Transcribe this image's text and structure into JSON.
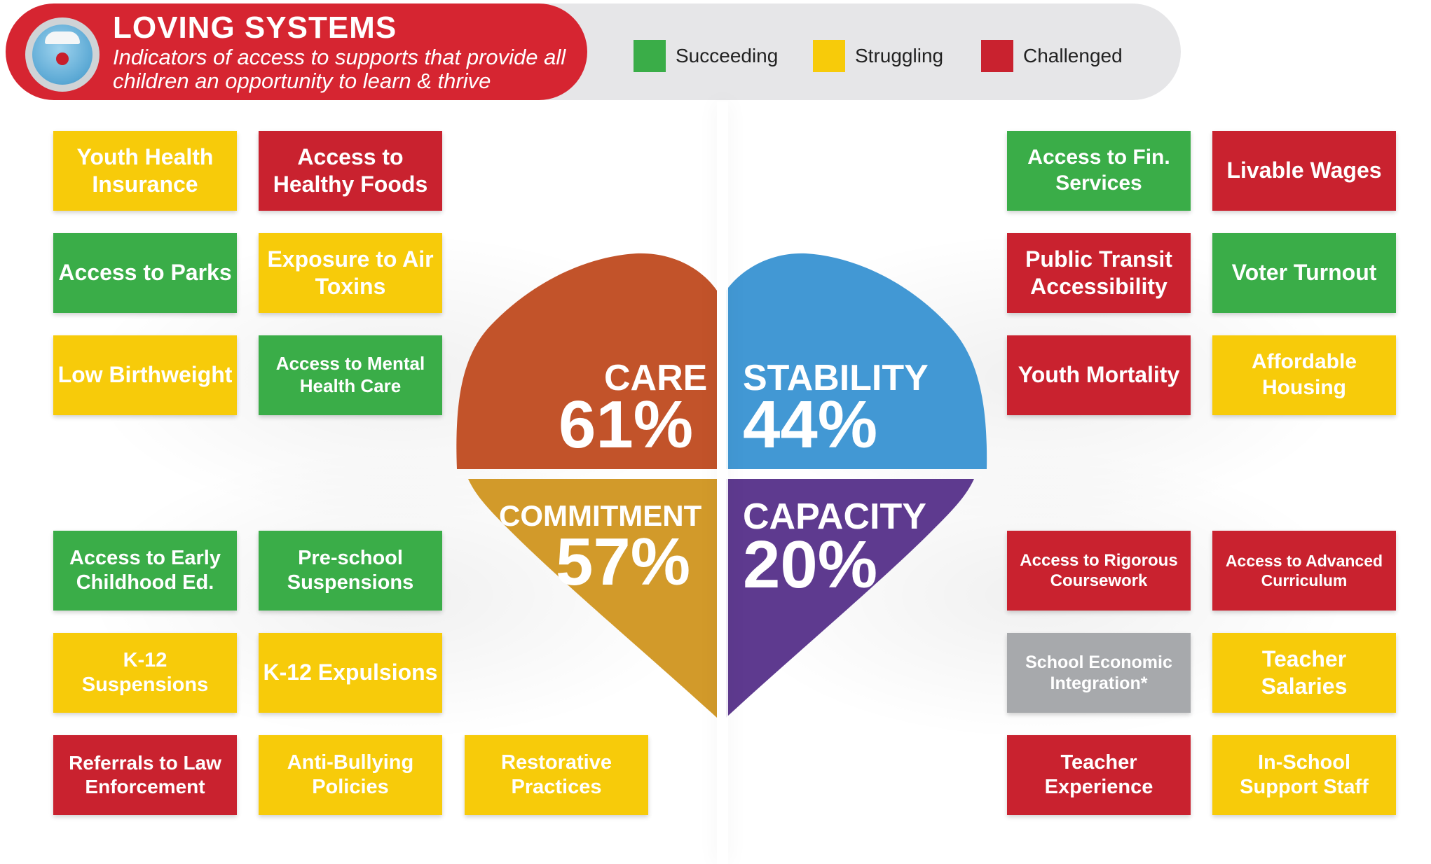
{
  "header": {
    "title": "LOVING SYSTEMS",
    "subtitle": "Indicators of access to supports that provide all children an opportunity to learn & thrive",
    "legend": [
      {
        "label": "Succeeding",
        "color": "#3aad48"
      },
      {
        "label": "Struggling",
        "color": "#f7cb0a"
      },
      {
        "label": "Challenged",
        "color": "#c9222f"
      }
    ]
  },
  "colors": {
    "succeeding": "#3aad48",
    "struggling": "#f7cb0a",
    "challenged": "#c9222f",
    "no_data": "#a7a9ac",
    "care": "#c2532a",
    "stability": "#4298d4",
    "commitment": "#d29a2a",
    "capacity": "#5e3a8f"
  },
  "quadrants": {
    "care": {
      "name": "CARE",
      "percent": "61%"
    },
    "stability": {
      "name": "STABILITY",
      "percent": "44%"
    },
    "commitment": {
      "name": "COMMITMENT",
      "percent": "57%"
    },
    "capacity": {
      "name": "CAPACITY",
      "percent": "20%"
    }
  },
  "indicators": {
    "care": [
      {
        "label": "Youth Health Insurance",
        "status": "struggling"
      },
      {
        "label": "Access to Healthy Foods",
        "status": "challenged"
      },
      {
        "label": "Access to Parks",
        "status": "succeeding"
      },
      {
        "label": "Exposure to Air Toxins",
        "status": "struggling"
      },
      {
        "label": "Low Birthweight",
        "status": "struggling"
      },
      {
        "label": "Access to Mental Health Care",
        "status": "succeeding"
      }
    ],
    "stability": [
      {
        "label": "Access to Fin. Services",
        "status": "succeeding"
      },
      {
        "label": "Livable Wages",
        "status": "challenged"
      },
      {
        "label": "Public Transit Accessibility",
        "status": "challenged"
      },
      {
        "label": "Voter Turnout",
        "status": "succeeding"
      },
      {
        "label": "Youth Mortality",
        "status": "challenged"
      },
      {
        "label": "Affordable Housing",
        "status": "struggling"
      }
    ],
    "commitment": [
      {
        "label": "Access to Early Childhood Ed.",
        "status": "succeeding"
      },
      {
        "label": "Pre-school Suspensions",
        "status": "succeeding"
      },
      {
        "label": "K-12 Suspensions",
        "status": "struggling"
      },
      {
        "label": "K-12 Expulsions",
        "status": "struggling"
      },
      {
        "label": "Referrals to Law Enforcement",
        "status": "challenged"
      },
      {
        "label": "Anti-Bullying Policies",
        "status": "struggling"
      },
      {
        "label": "Restorative Practices",
        "status": "struggling"
      }
    ],
    "capacity": [
      {
        "label": "Access to Rigorous Coursework",
        "status": "challenged"
      },
      {
        "label": "Access to Advanced Curriculum",
        "status": "challenged"
      },
      {
        "label": "School Economic Integration*",
        "status": "no_data"
      },
      {
        "label": "Teacher Salaries",
        "status": "struggling"
      },
      {
        "label": "Teacher Experience",
        "status": "challenged"
      },
      {
        "label": "In-School Support Staff",
        "status": "struggling"
      }
    ]
  }
}
